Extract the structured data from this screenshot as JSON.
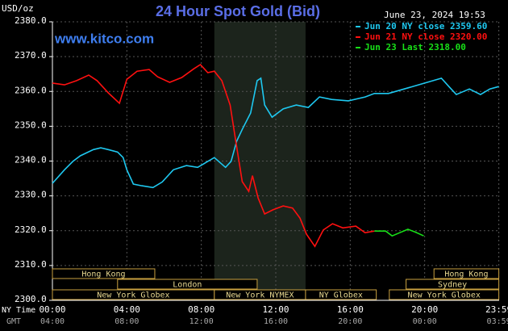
{
  "chart_data": {
    "type": "line",
    "title": "24 Hour Spot Gold (Bid)",
    "subtitle": "www.kitco.com",
    "timestamp": "June 23, 2024 19:53",
    "y_label": "USD/oz",
    "x_label": "NY Time",
    "x2_label": "GMT",
    "xlim": [
      0,
      24
    ],
    "xticks": [
      {
        "value": 0,
        "label": "00:00"
      },
      {
        "value": 4,
        "label": "04:00"
      },
      {
        "value": 8,
        "label": "08:00"
      },
      {
        "value": 12,
        "label": "12:00"
      },
      {
        "value": 16,
        "label": "16:00"
      },
      {
        "value": 20,
        "label": "20:00"
      },
      {
        "value": 23.983,
        "label": "23:59"
      }
    ],
    "x2ticks": [
      {
        "value": 0,
        "label": "04:00"
      },
      {
        "value": 4,
        "label": "08:00"
      },
      {
        "value": 8,
        "label": "12:00"
      },
      {
        "value": 12,
        "label": "16:00"
      },
      {
        "value": 16,
        "label": "20:00"
      },
      {
        "value": 20,
        "label": "00:00"
      },
      {
        "value": 23.983,
        "label": "03:59"
      }
    ],
    "ylim": [
      2300,
      2380
    ],
    "yticks": [
      {
        "value": 2300,
        "label": "2300.0"
      },
      {
        "value": 2310,
        "label": "2310.0"
      },
      {
        "value": 2320,
        "label": "2320.0"
      },
      {
        "value": 2330,
        "label": "2330.0"
      },
      {
        "value": 2340,
        "label": "2340.0"
      },
      {
        "value": 2350,
        "label": "2350.0"
      },
      {
        "value": 2360,
        "label": "2360.0"
      },
      {
        "value": 2370,
        "label": "2370.0"
      },
      {
        "value": 2380,
        "label": "2380.0"
      }
    ],
    "grid": true,
    "series": [
      {
        "name": "Jun 20 NY close 2359.60",
        "color": "#1ec8f0",
        "x": [
          0,
          0.65,
          1.1,
          1.5,
          2.2,
          2.6,
          3.0,
          3.5,
          3.8,
          4.0,
          4.35,
          4.8,
          5.4,
          5.9,
          6.5,
          7.2,
          7.8,
          8.7,
          9.3,
          9.6,
          9.9,
          10.2,
          10.65,
          11.0,
          11.2,
          11.4,
          11.8,
          12.4,
          13.1,
          13.75,
          14.35,
          15.0,
          15.9,
          16.8,
          17.3,
          18.05,
          18.9,
          20.0,
          20.9,
          21.3,
          21.7,
          22.4,
          23.0,
          23.5,
          23.983
        ],
        "values": [
          2333.6,
          2337.5,
          2339.9,
          2341.5,
          2343.3,
          2343.8,
          2343.3,
          2342.6,
          2341,
          2337.5,
          2333.4,
          2332.9,
          2332.4,
          2334,
          2337.5,
          2338.7,
          2338.2,
          2341,
          2338.2,
          2339.9,
          2345.7,
          2349.1,
          2353.8,
          2363.1,
          2363.8,
          2356.1,
          2352.6,
          2355,
          2356.1,
          2355.4,
          2358.4,
          2357.7,
          2357.3,
          2358.4,
          2359.4,
          2359.4,
          2360.7,
          2362.4,
          2363.8,
          2361.4,
          2359.1,
          2360.7,
          2359.1,
          2360.7,
          2361.4
        ]
      },
      {
        "name": "Jun 21 NY close 2320.00",
        "color": "#ff1010",
        "x": [
          0,
          0.65,
          1.3,
          1.95,
          2.4,
          3.0,
          3.6,
          4.0,
          4.55,
          5.2,
          5.65,
          6.3,
          6.95,
          7.6,
          7.95,
          8.35,
          8.7,
          9.1,
          9.55,
          9.85,
          10.2,
          10.55,
          10.75,
          11.05,
          11.4,
          11.85,
          12.4,
          12.9,
          13.3,
          13.65,
          14.1,
          14.55,
          15.05,
          15.6,
          16.3,
          16.8,
          17.3
        ],
        "values": [
          2362.4,
          2361.9,
          2363.1,
          2364.7,
          2363.1,
          2359.6,
          2356.6,
          2363.5,
          2365.8,
          2366.3,
          2364.2,
          2362.6,
          2364,
          2366.5,
          2367.7,
          2365.4,
          2365.8,
          2363.1,
          2356.1,
          2345.7,
          2334.1,
          2331.3,
          2335.8,
          2329.4,
          2324.8,
          2326,
          2327.1,
          2326.5,
          2323.6,
          2319,
          2315.5,
          2320.2,
          2322,
          2320.8,
          2321.3,
          2319.4,
          2319.9
        ]
      },
      {
        "name": "Jun 23 Last 2318.00",
        "color": "#18e018",
        "x": [
          17.3,
          17.9,
          18.25,
          18.65,
          19.1,
          19.5,
          19.95
        ],
        "values": [
          2319.9,
          2319.9,
          2318.5,
          2319.4,
          2320.4,
          2319.6,
          2318.5
        ]
      }
    ],
    "sessions": [
      [
        {
          "label": "Hong Kong",
          "start": 0,
          "end": 5.5
        },
        {
          "label": "Hong Kong",
          "start": 20.5,
          "end": 23.983
        }
      ],
      [
        {
          "label": "London",
          "start": 3.5,
          "end": 11
        },
        {
          "label": "Sydney",
          "start": 19,
          "end": 23.983
        }
      ],
      [
        {
          "label": "New York Globex",
          "start": 0,
          "end": 8.7
        },
        {
          "label": "New York NYMEX",
          "start": 8.7,
          "end": 13.6
        },
        {
          "label": "NY Globex",
          "start": 13.6,
          "end": 17.4
        },
        {
          "label": "New York Globex",
          "start": 18.1,
          "end": 23.983
        }
      ]
    ]
  }
}
